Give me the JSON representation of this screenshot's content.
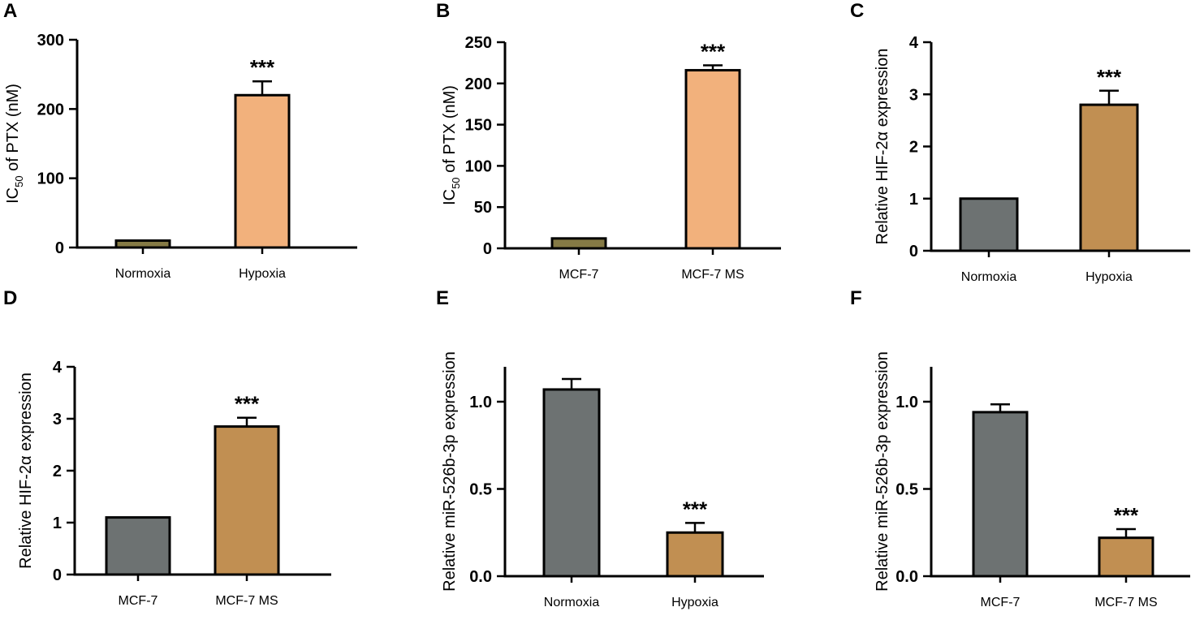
{
  "figure": {
    "colors": {
      "olive": "#857A45",
      "peach": "#F2B17C",
      "gray": "#6D7272",
      "tan": "#C18F52",
      "axis": "#000000"
    }
  },
  "chart_data": [
    {
      "panel": "A",
      "type": "bar",
      "categories": [
        "Normoxia",
        "Hypoxia"
      ],
      "values": [
        10,
        220
      ],
      "errors": [
        0,
        20
      ],
      "bar_colors": [
        "olive",
        "peach"
      ],
      "significance": [
        "",
        "***"
      ],
      "ylabel_main": "IC",
      "ylabel_sub": "50",
      "ylabel_rest": " of PTX (nM)",
      "ylim": [
        0,
        300
      ],
      "yticks": [
        0,
        100,
        200,
        300
      ],
      "ytick_labels": [
        "0",
        "100",
        "200",
        "300"
      ]
    },
    {
      "panel": "B",
      "type": "bar",
      "categories": [
        "MCF-7",
        "MCF-7 MS"
      ],
      "values": [
        12,
        216
      ],
      "errors": [
        0,
        6
      ],
      "bar_colors": [
        "olive",
        "peach"
      ],
      "significance": [
        "",
        "***"
      ],
      "ylabel_main": "IC",
      "ylabel_sub": "50",
      "ylabel_rest": " of PTX (nM)",
      "ylim": [
        0,
        250
      ],
      "yticks": [
        0,
        50,
        100,
        150,
        200,
        250
      ],
      "ytick_labels": [
        "0",
        "50",
        "100",
        "150",
        "200",
        "250"
      ]
    },
    {
      "panel": "C",
      "type": "bar",
      "categories": [
        "Normoxia",
        "Hypoxia"
      ],
      "values": [
        1.0,
        2.8
      ],
      "errors": [
        0,
        0.27
      ],
      "bar_colors": [
        "gray",
        "tan"
      ],
      "significance": [
        "",
        "***"
      ],
      "ylabel_main": "Relative HIF-2α expression",
      "ylabel_sub": "",
      "ylabel_rest": "",
      "ylim": [
        0,
        4
      ],
      "yticks": [
        0,
        1,
        2,
        3,
        4
      ],
      "ytick_labels": [
        "0",
        "1",
        "2",
        "3",
        "4"
      ]
    },
    {
      "panel": "D",
      "type": "bar",
      "categories": [
        "MCF-7",
        "MCF-7 MS"
      ],
      "values": [
        1.1,
        2.85
      ],
      "errors": [
        0,
        0.17
      ],
      "bar_colors": [
        "gray",
        "tan"
      ],
      "significance": [
        "",
        "***"
      ],
      "ylabel_main": "Relative HIF-2α expression",
      "ylabel_sub": "",
      "ylabel_rest": "",
      "ylim": [
        0,
        4
      ],
      "yticks": [
        0,
        1,
        2,
        3,
        4
      ],
      "ytick_labels": [
        "0",
        "1",
        "2",
        "3",
        "4"
      ]
    },
    {
      "panel": "E",
      "type": "bar",
      "categories": [
        "Normoxia",
        "Hypoxia"
      ],
      "values": [
        1.07,
        0.25
      ],
      "errors": [
        0.06,
        0.055
      ],
      "bar_colors": [
        "gray",
        "tan"
      ],
      "significance": [
        "",
        "***"
      ],
      "ylabel_main": "Relative miR-526b-3p expression",
      "ylabel_sub": "",
      "ylabel_rest": "",
      "ylim": [
        0,
        1.2
      ],
      "yticks": [
        0,
        0.5,
        1.0
      ],
      "ytick_labels": [
        "0.0",
        "0.5",
        "1.0"
      ]
    },
    {
      "panel": "F",
      "type": "bar",
      "categories": [
        "MCF-7",
        "MCF-7 MS"
      ],
      "values": [
        0.94,
        0.22
      ],
      "errors": [
        0.045,
        0.05
      ],
      "bar_colors": [
        "gray",
        "tan"
      ],
      "significance": [
        "",
        "***"
      ],
      "ylabel_main": "Relative miR-526b-3p expression",
      "ylabel_sub": "",
      "ylabel_rest": "",
      "ylim": [
        0,
        1.2
      ],
      "yticks": [
        0,
        0.5,
        1.0
      ],
      "ytick_labels": [
        "0.0",
        "0.5",
        "1.0"
      ]
    }
  ]
}
